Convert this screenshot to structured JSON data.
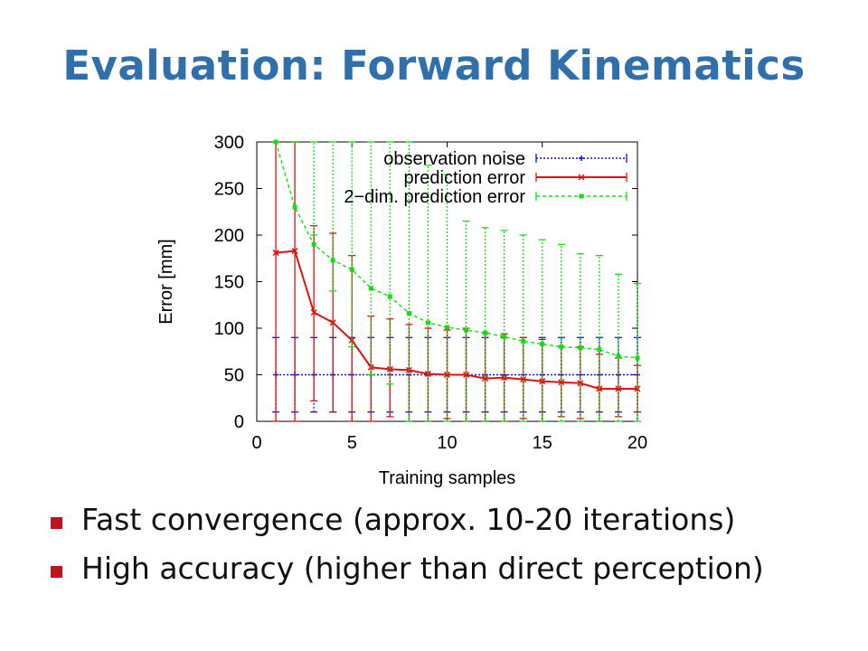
{
  "page": {
    "title": "Evaluation: Forward Kinematics"
  },
  "bullets": [
    "Fast convergence (approx. 10-20 iterations)",
    "High accuracy (higher than direct perception)"
  ],
  "chart_data": {
    "type": "line",
    "xlabel": "Training samples",
    "ylabel": "Error [mm]",
    "xlim": [
      0,
      20
    ],
    "ylim": [
      0,
      300
    ],
    "xticks": [
      0,
      5,
      10,
      15,
      20
    ],
    "yticks": [
      0,
      50,
      100,
      150,
      200,
      250,
      300
    ],
    "legend_position": "top-right",
    "grid": false,
    "series": [
      {
        "name": "observation noise",
        "color": "#1010e0",
        "marker": "plus",
        "x": [
          1,
          2,
          3,
          4,
          5,
          6,
          7,
          8,
          9,
          10,
          11,
          12,
          13,
          14,
          15,
          16,
          17,
          18,
          19,
          20
        ],
        "y": [
          50,
          50,
          50,
          50,
          50,
          50,
          50,
          50,
          50,
          50,
          50,
          50,
          50,
          50,
          50,
          50,
          50,
          50,
          50,
          50
        ],
        "err_low": [
          10,
          10,
          10,
          10,
          10,
          10,
          10,
          10,
          10,
          10,
          10,
          10,
          10,
          10,
          10,
          10,
          10,
          10,
          10,
          10
        ],
        "err_high": [
          90,
          90,
          90,
          90,
          90,
          90,
          90,
          90,
          90,
          90,
          90,
          90,
          90,
          90,
          90,
          90,
          90,
          90,
          90,
          90
        ]
      },
      {
        "name": "prediction error",
        "color": "#e01010",
        "marker": "cross",
        "x": [
          1,
          2,
          3,
          4,
          5,
          6,
          7,
          8,
          9,
          10,
          11,
          12,
          13,
          14,
          15,
          16,
          17,
          18,
          19,
          20
        ],
        "y": [
          181,
          183,
          117,
          106,
          87,
          58,
          56,
          55,
          51,
          50,
          50,
          46,
          47,
          45,
          43,
          42,
          41,
          35,
          35,
          35
        ],
        "err_low": [
          0,
          0,
          22,
          10,
          0,
          0,
          5,
          0,
          0,
          3,
          0,
          0,
          0,
          3,
          0,
          5,
          3,
          0,
          5,
          10
        ],
        "err_high": [
          300,
          300,
          210,
          202,
          178,
          113,
          110,
          104,
          100,
          98,
          100,
          95,
          94,
          90,
          88,
          80,
          80,
          72,
          68,
          60
        ]
      },
      {
        "name": "2−dim. prediction error",
        "color": "#10e010",
        "marker": "square",
        "x": [
          1,
          2,
          3,
          4,
          5,
          6,
          7,
          8,
          9,
          10,
          11,
          12,
          13,
          14,
          15,
          16,
          17,
          18,
          19,
          20
        ],
        "y": [
          300,
          230,
          190,
          173,
          163,
          143,
          134,
          116,
          106,
          101,
          98,
          95,
          91,
          86,
          83,
          80,
          79,
          77,
          70,
          68
        ],
        "err_low": [
          300,
          300,
          200,
          140,
          80,
          50,
          40,
          0,
          0,
          0,
          0,
          0,
          0,
          0,
          0,
          0,
          0,
          0,
          0,
          0
        ],
        "err_high": [
          300,
          300,
          300,
          300,
          300,
          300,
          300,
          300,
          275,
          265,
          215,
          208,
          205,
          200,
          195,
          190,
          180,
          178,
          158,
          148
        ]
      }
    ]
  }
}
